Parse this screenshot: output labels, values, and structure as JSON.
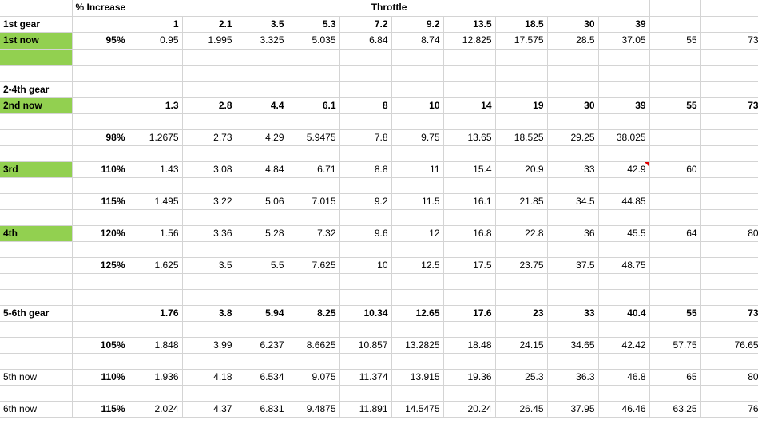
{
  "header": {
    "increase_label": "% Increase",
    "throttle_label": "Throttle"
  },
  "gear1": {
    "label": "1st gear",
    "throttle": [
      "1",
      "2.1",
      "3.5",
      "5.3",
      "7.2",
      "9.2",
      "13.5",
      "18.5",
      "30",
      "39"
    ],
    "now": {
      "label": "1st now",
      "pct": "95%",
      "values": [
        "0.95",
        "1.995",
        "3.325",
        "5.035",
        "6.84",
        "8.74",
        "12.825",
        "17.575",
        "28.5",
        "37.05",
        "55",
        "73"
      ]
    }
  },
  "gear2to4": {
    "label": "2-4th gear",
    "base": {
      "label": "2nd now",
      "values": [
        "1.3",
        "2.8",
        "4.4",
        "6.1",
        "8",
        "10",
        "14",
        "19",
        "30",
        "39",
        "55",
        "73"
      ]
    },
    "rows": [
      {
        "label": "",
        "pct": "98%",
        "values": [
          "1.2675",
          "2.73",
          "4.29",
          "5.9475",
          "7.8",
          "9.75",
          "13.65",
          "18.525",
          "29.25",
          "38.025",
          "",
          ""
        ]
      },
      {
        "label": "3rd",
        "pct": "110%",
        "values": [
          "1.43",
          "3.08",
          "4.84",
          "6.71",
          "8.8",
          "11",
          "15.4",
          "20.9",
          "33",
          "42.9",
          "60",
          ""
        ]
      },
      {
        "label": "",
        "pct": "115%",
        "values": [
          "1.495",
          "3.22",
          "5.06",
          "7.015",
          "9.2",
          "11.5",
          "16.1",
          "21.85",
          "34.5",
          "44.85",
          "",
          ""
        ]
      },
      {
        "label": "4th",
        "pct": "120%",
        "values": [
          "1.56",
          "3.36",
          "5.28",
          "7.32",
          "9.6",
          "12",
          "16.8",
          "22.8",
          "36",
          "45.5",
          "64",
          "80"
        ]
      },
      {
        "label": "",
        "pct": "125%",
        "values": [
          "1.625",
          "3.5",
          "5.5",
          "7.625",
          "10",
          "12.5",
          "17.5",
          "23.75",
          "37.5",
          "48.75",
          "",
          ""
        ]
      }
    ]
  },
  "gear5to6": {
    "label": "5-6th gear",
    "base": [
      "1.76",
      "3.8",
      "5.94",
      "8.25",
      "10.34",
      "12.65",
      "17.6",
      "23",
      "33",
      "40.4",
      "55",
      "73"
    ],
    "rows": [
      {
        "label": "",
        "pct": "105%",
        "values": [
          "1.848",
          "3.99",
          "6.237",
          "8.6625",
          "10.857",
          "13.2825",
          "18.48",
          "24.15",
          "34.65",
          "42.42",
          "57.75",
          "76.65"
        ]
      },
      {
        "label": "5th now",
        "pct": "110%",
        "values": [
          "1.936",
          "4.18",
          "6.534",
          "9.075",
          "11.374",
          "13.915",
          "19.36",
          "25.3",
          "36.3",
          "46.8",
          "65",
          "80"
        ]
      },
      {
        "label": "6th now",
        "pct": "115%",
        "values": [
          "2.024",
          "4.37",
          "6.831",
          "9.4875",
          "11.891",
          "14.5475",
          "20.24",
          "26.45",
          "37.95",
          "46.46",
          "63.25",
          "76"
        ]
      }
    ]
  },
  "colors": {
    "highlight_green": "#92d050",
    "gridline": "#d4d4d4",
    "comment_flag": "#e00000"
  }
}
